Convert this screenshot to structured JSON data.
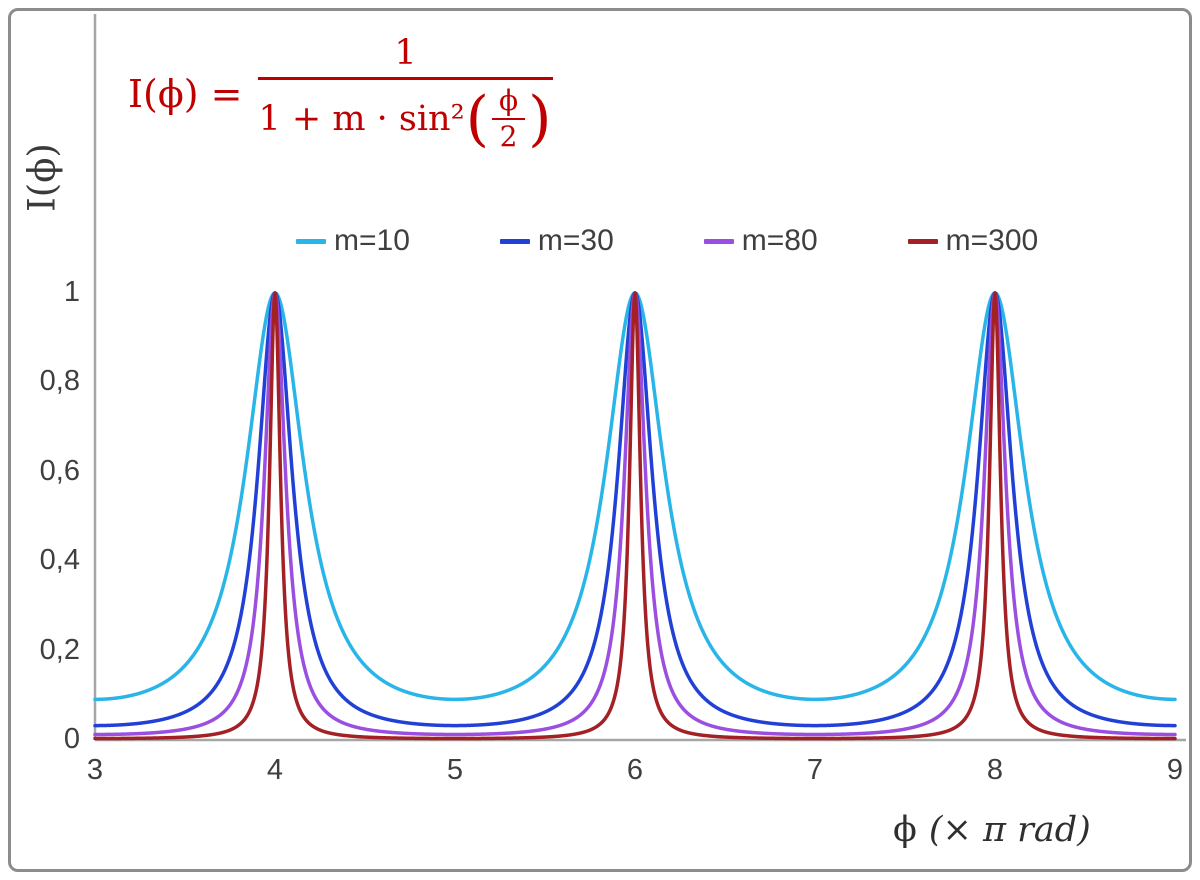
{
  "formula": {
    "lhs": "I(ϕ) =",
    "numerator": "1",
    "denom_prefix": "1 + m · sin²",
    "inner_lparen": "(",
    "inner_num": "ϕ",
    "inner_den": "2",
    "inner_rparen": ")",
    "color": "#c00000"
  },
  "axes": {
    "y_title": "I(ϕ)",
    "x_title_phi": "ϕ",
    "x_title_unit": "(× π rad)"
  },
  "chart_data": {
    "type": "line",
    "title": "",
    "formula": "I(ϕ) = 1 / (1 + m·sin²(ϕ/2))",
    "xlabel": "ϕ (× π rad)",
    "ylabel": "I(ϕ)",
    "x_axis": {
      "min": 3,
      "max": 9,
      "unit": "π rad",
      "ticks": [
        {
          "v": 3,
          "label": "3"
        },
        {
          "v": 4,
          "label": "4"
        },
        {
          "v": 5,
          "label": "5"
        },
        {
          "v": 6,
          "label": "6"
        },
        {
          "v": 7,
          "label": "7"
        },
        {
          "v": 8,
          "label": "8"
        },
        {
          "v": 9,
          "label": "9"
        }
      ]
    },
    "y_axis": {
      "min": 0,
      "max": 1,
      "ticks": [
        {
          "v": 0,
          "label": "0"
        },
        {
          "v": 0.2,
          "label": "0,2"
        },
        {
          "v": 0.4,
          "label": "0,4"
        },
        {
          "v": 0.6,
          "label": "0,6"
        },
        {
          "v": 0.8,
          "label": "0,8"
        },
        {
          "v": 1,
          "label": "1"
        }
      ]
    },
    "series": [
      {
        "name": "m=10",
        "m": 10,
        "color": "#29b5e8"
      },
      {
        "name": "m=30",
        "m": 30,
        "color": "#2141d6"
      },
      {
        "name": "m=80",
        "m": 80,
        "color": "#9b4fe0"
      },
      {
        "name": "m=300",
        "m": 300,
        "color": "#a32025"
      }
    ],
    "peaks_x": [
      4,
      6,
      8
    ],
    "peak_value": 1,
    "legend_position": "top-center",
    "grid": false,
    "sampling_step": 0.002,
    "axis_color": "#a6a6a6",
    "tick_color": "#3f3f3f",
    "line_width": 3.5
  }
}
